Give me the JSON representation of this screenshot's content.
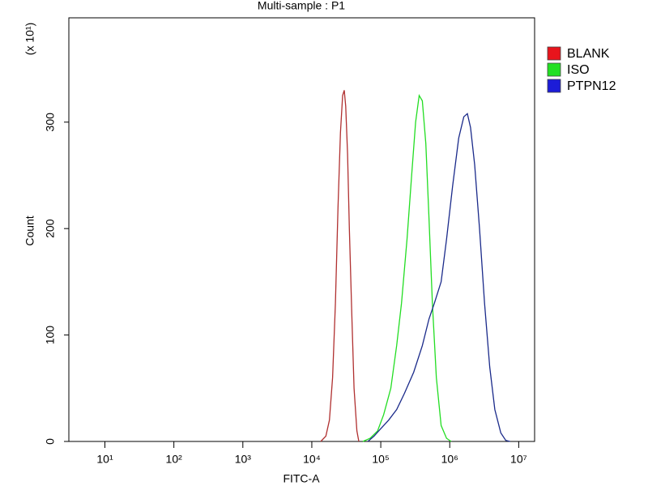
{
  "chart_data": {
    "type": "histogram-overlay",
    "title": "Multi-sample : P1",
    "x_label": "FITC-A",
    "y_label": "Count",
    "y_multiplier": "(x 10¹)",
    "xscale": "log",
    "xlim": [
      3,
      17000000
    ],
    "ylim": [
      0,
      398
    ],
    "xticks": [
      {
        "value": 10,
        "label": "10¹"
      },
      {
        "value": 100,
        "label": "10²"
      },
      {
        "value": 1000,
        "label": "10³"
      },
      {
        "value": 10000,
        "label": "10⁴"
      },
      {
        "value": 100000,
        "label": "10⁵"
      },
      {
        "value": 1000000,
        "label": "10⁶"
      },
      {
        "value": 10000000,
        "label": "10⁷"
      }
    ],
    "yticks": [
      0,
      100,
      200,
      300
    ],
    "legend": "outside-top-right",
    "series": [
      {
        "name": "BLANK",
        "color": "#e8141c",
        "line_color": "#b03030",
        "x": [
          13500,
          16000,
          18000,
          20000,
          22000,
          24000,
          26000,
          28000,
          29500,
          31000,
          33000,
          35000,
          38000,
          41000,
          45000,
          48000
        ],
        "values": [
          0,
          5,
          20,
          60,
          130,
          220,
          290,
          325,
          330,
          315,
          270,
          200,
          120,
          50,
          10,
          0
        ]
      },
      {
        "name": "ISO",
        "color": "#22e022",
        "line_color": "#22dd22",
        "x": [
          55000,
          70000,
          90000,
          110000,
          140000,
          170000,
          200000,
          240000,
          280000,
          320000,
          360000,
          400000,
          450000,
          500000,
          560000,
          640000,
          750000,
          900000,
          1050000
        ],
        "values": [
          0,
          3,
          10,
          25,
          50,
          90,
          130,
          190,
          250,
          300,
          325,
          320,
          280,
          210,
          130,
          60,
          15,
          3,
          0
        ]
      },
      {
        "name": "PTPN12",
        "color": "#1c1cd8",
        "line_color": "#1a2a8a",
        "x": [
          65000,
          80000,
          100000,
          130000,
          170000,
          220000,
          300000,
          400000,
          500000,
          600000,
          750000,
          900000,
          1100000,
          1350000,
          1600000,
          1800000,
          2000000,
          2300000,
          2700000,
          3200000,
          3800000,
          4500000,
          5500000,
          6500000,
          7500000
        ],
        "values": [
          0,
          5,
          12,
          20,
          30,
          45,
          65,
          90,
          115,
          130,
          150,
          190,
          240,
          285,
          305,
          308,
          295,
          260,
          200,
          130,
          70,
          30,
          8,
          1,
          0
        ]
      }
    ]
  }
}
